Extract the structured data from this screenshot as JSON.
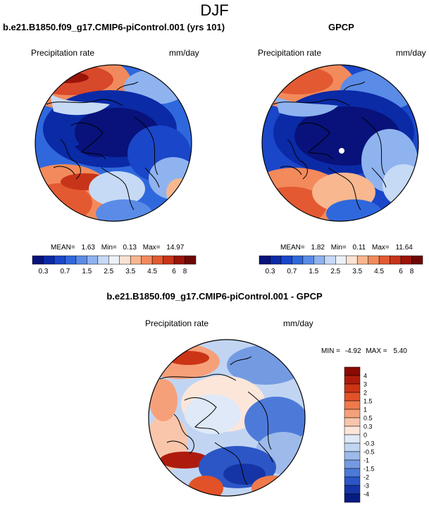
{
  "figure": {
    "title": "DJF"
  },
  "panels": {
    "model": {
      "title": "b.e21.B1850.f09_g17.CMIP6-piControl.001 (yrs 101)",
      "variable": "Precipitation rate",
      "units": "mm/day",
      "stats": {
        "mean_label": "MEAN=",
        "mean": "1.63",
        "min_label": "Min=",
        "min": "0.13",
        "max_label": "Max=",
        "max": "14.97"
      }
    },
    "obs": {
      "title": "GPCP",
      "variable": "Precipitation rate",
      "units": "mm/day",
      "stats": {
        "mean_label": "MEAN=",
        "mean": "1.82",
        "min_label": "Min=",
        "min": "0.11",
        "max_label": "Max=",
        "max": "11.64"
      }
    },
    "diff": {
      "title": "b.e21.B1850.f09_g17.CMIP6-piControl.001 - GPCP",
      "variable": "Precipitation rate",
      "units": "mm/day",
      "minmax": {
        "min_label": "MIN =",
        "min": "-4.92",
        "max_label": "MAX =",
        "max": "5.40"
      }
    }
  },
  "colorbars": {
    "precip": {
      "labels": [
        "0.3",
        "0.7",
        "1.5",
        "2.5",
        "3.5",
        "4.5",
        "6",
        "8"
      ],
      "colors": [
        "#08127a",
        "#0b2aa6",
        "#1a46c9",
        "#2f68dd",
        "#5a8be6",
        "#8fb3ef",
        "#c6daf6",
        "#eef2f8",
        "#fbe3d4",
        "#f8b78f",
        "#f38a5c",
        "#e35a32",
        "#c8341a",
        "#9a1408",
        "#6e0804"
      ]
    },
    "diff": {
      "labels": [
        "4",
        "3",
        "2",
        "1.5",
        "1",
        "0.5",
        "0.3",
        "0",
        "-0.3",
        "-0.5",
        "-1",
        "-1.5",
        "-2",
        "-3",
        "-4"
      ],
      "colors": [
        "#8b0a03",
        "#ae1b0c",
        "#cc3416",
        "#e25228",
        "#f07a4c",
        "#f6a07a",
        "#f9c6ab",
        "#fce6da",
        "#dfe9f8",
        "#c1d5f3",
        "#9dbaea",
        "#749be2",
        "#4d7ad9",
        "#2c56c6",
        "#1535a6",
        "#071c80"
      ]
    }
  }
}
